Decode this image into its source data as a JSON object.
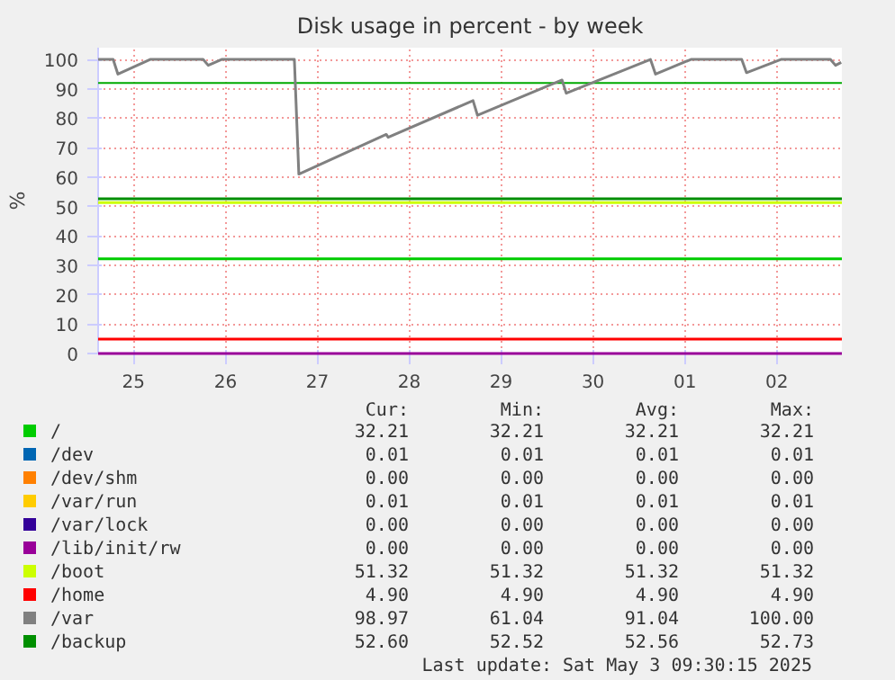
{
  "chart_data": {
    "type": "line",
    "title": "Disk usage in percent - by week",
    "ylabel": "%",
    "x": [
      "2025-04-25T02:45",
      "2025-05-03T05:00"
    ],
    "xlim": [
      "2025-04-25T02:45",
      "2025-05-03T05:00"
    ],
    "xticks": [
      {
        "value": "2025-04-25T12:00",
        "label": "25"
      },
      {
        "value": "2025-04-26T12:00",
        "label": "26"
      },
      {
        "value": "2025-04-27T12:00",
        "label": "27"
      },
      {
        "value": "2025-04-28T12:00",
        "label": "28"
      },
      {
        "value": "2025-04-29T12:00",
        "label": "29"
      },
      {
        "value": "2025-04-30T12:00",
        "label": "30"
      },
      {
        "value": "2025-05-01T12:00",
        "label": "01"
      },
      {
        "value": "2025-05-02T12:00",
        "label": "02"
      }
    ],
    "ylim": [
      0,
      104
    ],
    "yticks": [
      0,
      10,
      20,
      30,
      40,
      50,
      60,
      70,
      80,
      90,
      100
    ],
    "grid": true,
    "legend": "bottom",
    "marker": "none",
    "line_style": "solid",
    "ref_lines": [
      {
        "axis": "y",
        "value": 92,
        "color": "#00aa00"
      }
    ],
    "series": [
      {
        "name": "/",
        "color": "#00cc00",
        "values": [
          32.21,
          32.21
        ]
      },
      {
        "name": "/dev",
        "color": "#0066b3",
        "values": [
          null,
          null
        ]
      },
      {
        "name": "/dev/shm",
        "color": "#ff8000",
        "values": [
          null,
          null
        ]
      },
      {
        "name": "/var/run",
        "color": "#ffcc00",
        "values": [
          null,
          null
        ]
      },
      {
        "name": "/var/lock",
        "color": "#330099",
        "values": [
          null,
          null
        ]
      },
      {
        "name": "/lib/init/rw",
        "color": "#990099",
        "values": [
          0,
          0
        ]
      },
      {
        "name": "/boot",
        "color": "#ccff00",
        "values": [
          51.32,
          51.32
        ]
      },
      {
        "name": "/home",
        "color": "#ff0000",
        "values": [
          4.9,
          4.9
        ]
      },
      {
        "name": "/var",
        "color": "#808080",
        "x": [
          "2025-04-25T02:45",
          "2025-04-25T06:40",
          "2025-04-25T07:55",
          "2025-04-25T16:20",
          "2025-04-26T06:10",
          "2025-04-26T07:30",
          "2025-04-26T11:00",
          "2025-04-27T06:00",
          "2025-04-27T07:10",
          "2025-04-28T06:00",
          "2025-04-28T06:30",
          "2025-04-29T04:40",
          "2025-04-29T05:50",
          "2025-04-30T03:55",
          "2025-04-30T05:00",
          "2025-05-01T03:00",
          "2025-05-01T04:20",
          "2025-05-01T13:35",
          "2025-05-02T02:50",
          "2025-05-02T04:05",
          "2025-05-02T13:05",
          "2025-05-03T02:00",
          "2025-05-03T03:20",
          "2025-05-03T04:50"
        ],
        "values": [
          100,
          100,
          95,
          100,
          100,
          98,
          100,
          100,
          61,
          74.5,
          73.5,
          86,
          81,
          93,
          88.5,
          100,
          95,
          100,
          100,
          95.5,
          100,
          100,
          98,
          99
        ]
      },
      {
        "name": "/backup",
        "color": "#008f00",
        "values": [
          52.6,
          52.6
        ]
      }
    ],
    "annotations": [
      "Cur:",
      "Min:",
      "Avg:",
      "Max:",
      "32.21",
      "32.21",
      "32.21",
      "32.21",
      "0.01",
      "0.01",
      "0.01",
      "0.01",
      "0.00",
      "0.00",
      "0.00",
      "0.00",
      "0.01",
      "0.01",
      "0.01",
      "0.01",
      "0.00",
      "0.00",
      "0.00",
      "0.00",
      "0.00",
      "0.00",
      "0.00",
      "0.00",
      "51.32",
      "51.32",
      "51.32",
      "51.32",
      "4.90",
      "4.90",
      "4.90",
      "4.90",
      "98.97",
      "61.04",
      "91.04",
      "100.00",
      "52.60",
      "52.52",
      "52.56",
      "52.73",
      "Last update:  Sat May  3 09:30:15 2025"
    ]
  }
}
